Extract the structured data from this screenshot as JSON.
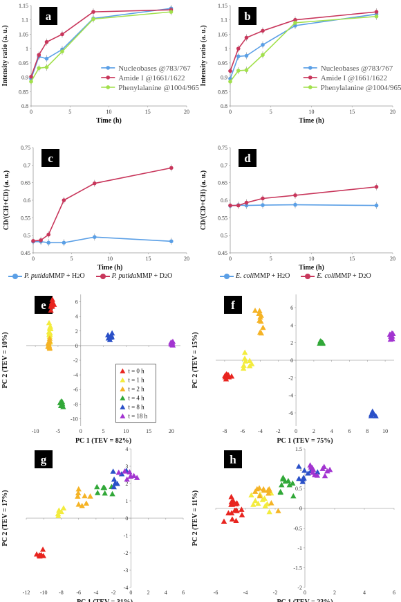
{
  "colors": {
    "blue": "#5a9fe6",
    "red": "#c8365b",
    "green": "#a2e04c",
    "t0": "#e8241f",
    "t1": "#f3ec3e",
    "t2": "#f5b325",
    "t4": "#31a838",
    "t8": "#2a50c8",
    "t18": "#a234d0"
  },
  "legend_cd_left": {
    "item1_species": "P. putida",
    "item1_rest": " MMP + H",
    "item1_sub": "2",
    "item1_tail": "O",
    "item2_species": "P. putida",
    "item2_rest": " MMP + D",
    "item2_sub": "2",
    "item2_tail": "O"
  },
  "legend_cd_right": {
    "item1_species": "E. coli",
    "item1_rest": " MMP + H",
    "item1_sub": "2",
    "item1_tail": "O",
    "item2_species": "E. coli",
    "item2_rest": " MMP + D",
    "item2_sub": "2",
    "item2_tail": "O"
  },
  "chart_data": [
    {
      "panel": "a",
      "type": "line",
      "xlabel": "Time (h)",
      "ylabel": "Intensity ratio (a. u.)",
      "xlim": [
        0,
        20
      ],
      "ylim": [
        0.8,
        1.15
      ],
      "xticks": [
        "0",
        "5",
        "10",
        "15",
        "20"
      ],
      "yticks": [
        "0.8",
        "0.85",
        "0.9",
        "0.95",
        "1",
        "1.05",
        "1.1",
        "1.15"
      ],
      "x": [
        0,
        1,
        2,
        4,
        8,
        18
      ],
      "series": [
        {
          "name": "Nucleobases @783/767",
          "color": "#5a9fe6",
          "values": [
            0.895,
            0.972,
            0.965,
            0.997,
            1.105,
            1.14
          ]
        },
        {
          "name": "Amide I @1661/1622",
          "color": "#c8365b",
          "values": [
            0.902,
            0.978,
            1.023,
            1.05,
            1.128,
            1.135
          ]
        },
        {
          "name": "Phenylalanine @1004/965",
          "color": "#a2e04c",
          "values": [
            0.885,
            0.932,
            0.935,
            0.99,
            1.103,
            1.128
          ]
        }
      ]
    },
    {
      "panel": "b",
      "type": "line",
      "xlabel": "Time (h)",
      "ylabel": "Intensity ratio (a. u.)",
      "xlim": [
        0,
        20
      ],
      "ylim": [
        0.8,
        1.15
      ],
      "xticks": [
        "0",
        "5",
        "10",
        "15",
        "20"
      ],
      "yticks": [
        "0.8",
        "0.85",
        "0.9",
        "0.95",
        "1",
        "1.05",
        "1.1",
        "1.15"
      ],
      "x": [
        0,
        1,
        2,
        4,
        8,
        18
      ],
      "series": [
        {
          "name": "Nucleobases @783/767",
          "color": "#5a9fe6",
          "values": [
            0.895,
            0.973,
            0.975,
            1.013,
            1.08,
            1.12
          ]
        },
        {
          "name": "Amide I @1661/1622",
          "color": "#c8365b",
          "values": [
            0.922,
            1.0,
            1.038,
            1.062,
            1.1,
            1.128
          ]
        },
        {
          "name": "Phenylalanine @1004/965",
          "color": "#a2e04c",
          "values": [
            0.885,
            0.923,
            0.925,
            0.978,
            1.09,
            1.112
          ]
        }
      ]
    },
    {
      "panel": "c",
      "type": "line",
      "xlabel": "Time (h)",
      "ylabel": "CD/(CH+CD) (a. u.)",
      "xlim": [
        0,
        20
      ],
      "ylim": [
        0.45,
        0.75
      ],
      "xticks": [
        "0",
        "5",
        "10",
        "15",
        "20"
      ],
      "yticks": [
        "0.45",
        "0.5",
        "0.55",
        "0.6",
        "0.65",
        "0.7",
        "0.75"
      ],
      "x": [
        0,
        1,
        2,
        4,
        8,
        18
      ],
      "series": [
        {
          "color": "#5a9fe6",
          "values": [
            0.482,
            0.482,
            0.479,
            0.479,
            0.495,
            0.483
          ]
        },
        {
          "color": "#c8365b",
          "values": [
            0.484,
            0.486,
            0.502,
            0.6,
            0.648,
            0.692
          ]
        }
      ]
    },
    {
      "panel": "d",
      "type": "line",
      "xlabel": "Time (h)",
      "ylabel": "CD/(CD+CH) (a. u.)",
      "xlim": [
        0,
        20
      ],
      "ylim": [
        0.45,
        0.75
      ],
      "xticks": [
        "0",
        "5",
        "10",
        "15",
        "20"
      ],
      "yticks": [
        "0.45",
        "0.5",
        "0.55",
        "0.6",
        "0.65",
        "0.7",
        "0.75"
      ],
      "x": [
        0,
        1,
        2,
        4,
        8,
        18
      ],
      "series": [
        {
          "color": "#5a9fe6",
          "values": [
            0.584,
            0.586,
            0.585,
            0.586,
            0.587,
            0.585
          ]
        },
        {
          "color": "#c8365b",
          "values": [
            0.585,
            0.585,
            0.593,
            0.605,
            0.614,
            0.638
          ]
        }
      ]
    },
    {
      "panel": "e",
      "type": "scatter",
      "xlabel": "PC 1 (TEV = 82%)",
      "ylabel": "PC 2 (TEV = 10%)",
      "xlim": [
        -12,
        22
      ],
      "ylim": [
        -11,
        7
      ],
      "xticks": [
        "-10",
        "-5",
        "0",
        "5",
        "10",
        "15",
        "20"
      ],
      "yticks": [
        "-10",
        "-8",
        "-6",
        "-4",
        "-2",
        "0",
        "2",
        "4",
        "6"
      ],
      "legend_title": "",
      "series": [
        {
          "name": "t = 0 h",
          "color": "#e8241f",
          "clusters": [
            {
              "x": -6.3,
              "y": 5.6,
              "sx": 0.5,
              "sy": 0.7,
              "n": 14
            }
          ]
        },
        {
          "name": "t = 1 h",
          "color": "#f3ec3e",
          "clusters": [
            {
              "x": -6.8,
              "y": 1.5,
              "sx": 0.3,
              "sy": 1.2,
              "n": 14
            }
          ]
        },
        {
          "name": "t = 2 h",
          "color": "#f5b325",
          "clusters": [
            {
              "x": -7.0,
              "y": 0.1,
              "sx": 0.3,
              "sy": 1.0,
              "n": 12
            }
          ]
        },
        {
          "name": "t = 4 h",
          "color": "#31a838",
          "clusters": [
            {
              "x": -4.2,
              "y": -8.0,
              "sx": 0.3,
              "sy": 0.3,
              "n": 9
            }
          ]
        },
        {
          "name": "t = 8 h",
          "color": "#2a50c8",
          "clusters": [
            {
              "x": 6.3,
              "y": 1.3,
              "sx": 0.6,
              "sy": 0.4,
              "n": 8
            }
          ]
        },
        {
          "name": "t = 18 h",
          "color": "#a234d0",
          "clusters": [
            {
              "x": 20.2,
              "y": 0.3,
              "sx": 0.2,
              "sy": 0.2,
              "n": 8
            }
          ]
        }
      ]
    },
    {
      "panel": "f",
      "type": "scatter",
      "xlabel": "PC 1 (TEV = 75%)",
      "ylabel": "PC 2 (TEV = 15%)",
      "xlim": [
        -9,
        11
      ],
      "ylim": [
        -7.5,
        7.5
      ],
      "xticks": [
        "-8",
        "-6",
        "-4",
        "-2",
        "0",
        "2",
        "4",
        "6",
        "8",
        "10"
      ],
      "yticks": [
        "-6",
        "-4",
        "-2",
        "0",
        "2",
        "4",
        "6"
      ],
      "series": [
        {
          "name": "t = 0 h",
          "color": "#e8241f",
          "clusters": [
            {
              "x": -7.7,
              "y": -1.8,
              "sx": 0.3,
              "sy": 0.3,
              "n": 10
            }
          ]
        },
        {
          "name": "t = 1 h",
          "color": "#f3ec3e",
          "clusters": [
            {
              "x": -5.6,
              "y": 0.2,
              "sx": 0.6,
              "sy": 1.5,
              "n": 8
            }
          ]
        },
        {
          "name": "t = 2 h",
          "color": "#f5b325",
          "clusters": [
            {
              "x": -4.0,
              "y": 4.3,
              "sx": 0.5,
              "sy": 1.2,
              "n": 10
            }
          ]
        },
        {
          "name": "t = 4 h",
          "color": "#31a838",
          "clusters": [
            {
              "x": 2.9,
              "y": 1.9,
              "sx": 0.2,
              "sy": 0.2,
              "n": 8
            }
          ]
        },
        {
          "name": "t = 8 h",
          "color": "#2a50c8",
          "clusters": [
            {
              "x": 8.6,
              "y": -6.2,
              "sx": 0.3,
              "sy": 0.3,
              "n": 8
            }
          ]
        },
        {
          "name": "t = 18 h",
          "color": "#a234d0",
          "clusters": [
            {
              "x": 10.6,
              "y": 2.8,
              "sx": 0.2,
              "sy": 0.3,
              "n": 8
            }
          ]
        }
      ]
    },
    {
      "panel": "g",
      "type": "scatter",
      "xlabel": "PC 1 (TEV = 31%)",
      "ylabel": "PC 2 (TEV = 17%)",
      "xlim": [
        -12,
        6
      ],
      "ylim": [
        -4,
        4
      ],
      "xticks": [
        "-12",
        "-10",
        "-8",
        "-6",
        "-4",
        "-2",
        "0",
        "2",
        "4",
        "6"
      ],
      "yticks": [
        "-4",
        "-3",
        "-2",
        "-1",
        "0",
        "1",
        "2",
        "3",
        "4"
      ],
      "series": [
        {
          "name": "t = 0 h",
          "color": "#e8241f",
          "clusters": [
            {
              "x": -10.2,
              "y": -2.0,
              "sx": 0.6,
              "sy": 0.3,
              "n": 7
            }
          ]
        },
        {
          "name": "t = 1 h",
          "color": "#f3ec3e",
          "clusters": [
            {
              "x": -8.0,
              "y": 0.3,
              "sx": 0.5,
              "sy": 0.3,
              "n": 5
            }
          ]
        },
        {
          "name": "t = 2 h",
          "color": "#f5b325",
          "clusters": [
            {
              "x": -5.5,
              "y": 1.4,
              "sx": 1.0,
              "sy": 0.4,
              "n": 8
            }
          ]
        },
        {
          "name": "t = 4 h",
          "color": "#31a838",
          "clusters": [
            {
              "x": -3.5,
              "y": 1.8,
              "sx": 1.0,
              "sy": 0.4,
              "n": 7
            }
          ]
        },
        {
          "name": "t = 8 h",
          "color": "#2a50c8",
          "clusters": [
            {
              "x": -1.5,
              "y": 2.3,
              "sx": 0.8,
              "sy": 0.4,
              "n": 7
            }
          ]
        },
        {
          "name": "t = 18 h",
          "color": "#a234d0",
          "clusters": [
            {
              "x": -0.3,
              "y": 2.5,
              "sx": 0.8,
              "sy": 0.4,
              "n": 8
            }
          ]
        }
      ]
    },
    {
      "panel": "h",
      "type": "scatter",
      "xlabel": "PC 1 (TEV = 23%)",
      "ylabel": "PC 2 (TEV = 11%)",
      "xlim": [
        -6,
        6
      ],
      "ylim": [
        -2,
        1.5
      ],
      "xticks": [
        "-6",
        "-4",
        "-2",
        "0",
        "2",
        "4",
        "6"
      ],
      "yticks": [
        "-2",
        "-1.5",
        "-1",
        "-0.5",
        "0",
        "0.5",
        "1",
        "1.5"
      ],
      "series": [
        {
          "name": "t = 0 h",
          "color": "#e8241f",
          "clusters": [
            {
              "x": -4.8,
              "y": 0.0,
              "sx": 0.6,
              "sy": 0.3,
              "n": 18
            }
          ]
        },
        {
          "name": "t = 1 h",
          "color": "#f3ec3e",
          "clusters": [
            {
              "x": -3.0,
              "y": 0.2,
              "sx": 0.7,
              "sy": 0.3,
              "n": 12
            }
          ]
        },
        {
          "name": "t = 2 h",
          "color": "#f5b325",
          "clusters": [
            {
              "x": -2.5,
              "y": 0.4,
              "sx": 0.8,
              "sy": 0.3,
              "n": 12
            }
          ]
        },
        {
          "name": "t = 4 h",
          "color": "#31a838",
          "clusters": [
            {
              "x": -1.2,
              "y": 0.6,
              "sx": 0.7,
              "sy": 0.2,
              "n": 10
            }
          ]
        },
        {
          "name": "t = 8 h",
          "color": "#2a50c8",
          "clusters": [
            {
              "x": 0.0,
              "y": 0.85,
              "sx": 0.6,
              "sy": 0.2,
              "n": 10
            }
          ]
        },
        {
          "name": "t = 18 h",
          "color": "#a234d0",
          "clusters": [
            {
              "x": 0.9,
              "y": 0.95,
              "sx": 0.7,
              "sy": 0.2,
              "n": 12
            }
          ]
        }
      ]
    }
  ]
}
